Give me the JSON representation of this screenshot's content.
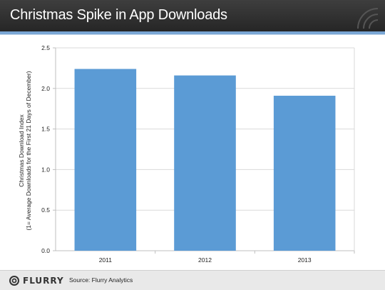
{
  "header": {
    "title": "Christmas Spike in App Downloads"
  },
  "footer": {
    "logo_text": "FLURRY",
    "source": "Source: Flurry Analytics"
  },
  "colors": {
    "bar": "#5b9bd5",
    "header_bg": "#2e2e2e",
    "accent": "#7aa6d4"
  },
  "chart_data": {
    "type": "bar",
    "categories": [
      "2011",
      "2012",
      "2013"
    ],
    "values": [
      2.24,
      2.16,
      1.91
    ],
    "title": "",
    "xlabel": "",
    "ylabel": "Christmas Download Index",
    "ylabel2": "(1= Average Downloads for the First 21 Days of December)",
    "ylim": [
      0,
      2.5
    ],
    "yticks": [
      "0.0",
      "0.5",
      "1.0",
      "1.5",
      "2.0",
      "2.5"
    ],
    "grid": true
  }
}
